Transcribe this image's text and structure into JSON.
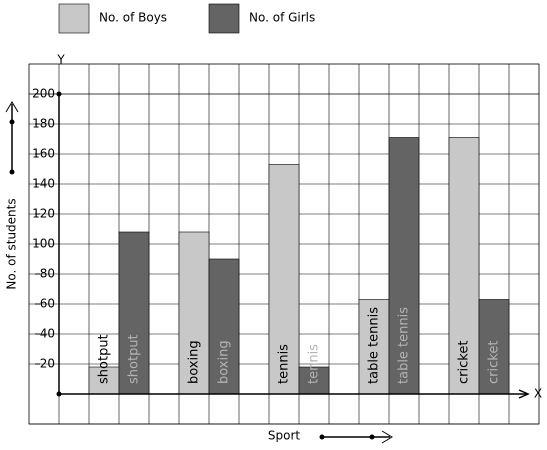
{
  "chart_data": {
    "type": "bar",
    "x_label": "Sport",
    "y_label": "No. of students",
    "x_axis_letter": "X",
    "y_axis_letter": "Y",
    "categories": [
      "shotput",
      "boxing",
      "tennis",
      "table tennis",
      "cricket"
    ],
    "series": [
      {
        "name": "No. of Boys",
        "color": "#c8c8c8",
        "values": [
          18,
          108,
          153,
          63,
          171
        ]
      },
      {
        "name": "No. of Girls",
        "color": "#646464",
        "values": [
          108,
          90,
          18,
          171,
          63
        ]
      }
    ],
    "ylim": [
      0,
      200
    ],
    "yticks": [
      20,
      40,
      60,
      80,
      100,
      120,
      140,
      160,
      180,
      200
    ],
    "grid": true
  }
}
